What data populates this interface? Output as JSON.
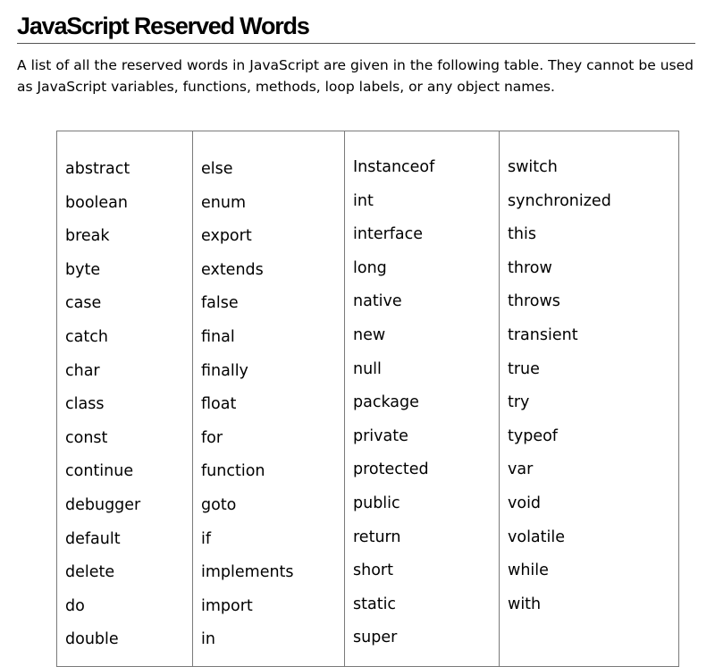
{
  "page": {
    "title": "JavaScript Reserved Words",
    "intro": "A list of all the reserved words in JavaScript are given in the following table. They cannot be used as JavaScript variables, functions, methods, loop labels, or any object names."
  },
  "table": {
    "columns": [
      [
        "abstract",
        "boolean",
        "break",
        "byte",
        "case",
        "catch",
        "char",
        "class",
        "const",
        "continue",
        "debugger",
        "default",
        "delete",
        "do",
        "double"
      ],
      [
        "else",
        "enum",
        "export",
        "extends",
        "false",
        "final",
        "finally",
        "float",
        "for",
        "function",
        "goto",
        "if",
        "implements",
        "import",
        "in"
      ],
      [
        "Instanceof",
        "int",
        "interface",
        "long",
        "native",
        "new",
        "null",
        "package",
        "private",
        "protected",
        "public",
        "return",
        "short",
        "static",
        "super"
      ],
      [
        "switch",
        "synchronized",
        "this",
        "throw",
        "throws",
        "transient",
        "true",
        "try",
        "typeof",
        "var",
        "void",
        "volatile",
        "while",
        "with"
      ]
    ]
  }
}
